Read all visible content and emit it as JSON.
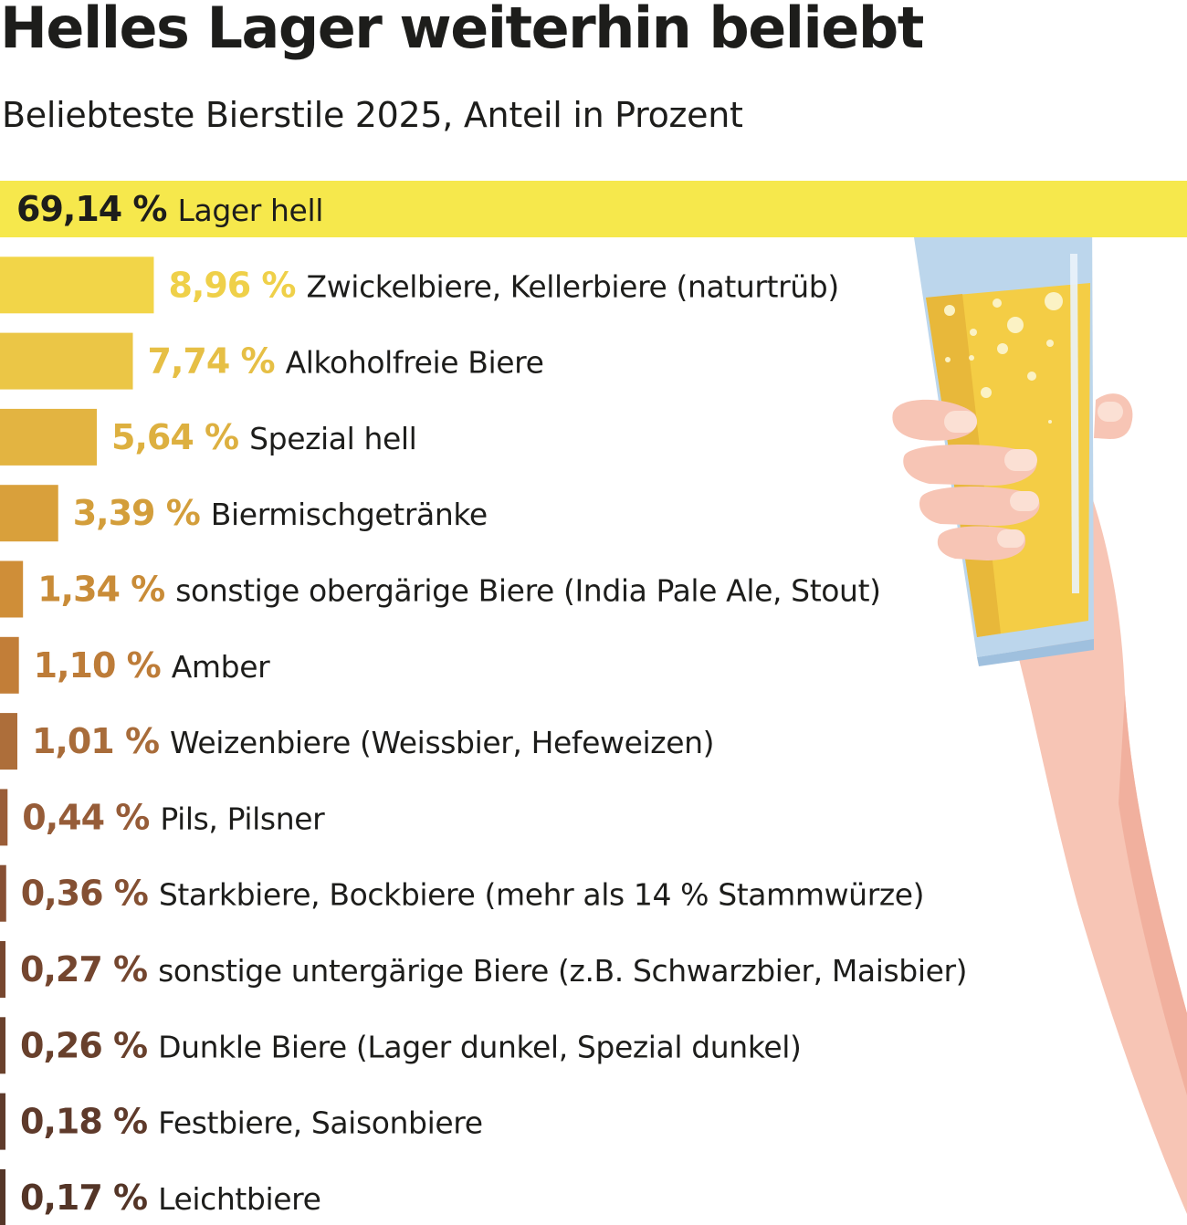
{
  "title": "Helles Lager weiterhin beliebt",
  "subtitle": "Beliebteste Bierstile 2025, Anteil in Prozent",
  "illustration": "hand-holding-beer-glass",
  "chart_data": {
    "type": "bar",
    "orientation": "horizontal",
    "title": "Helles Lager weiterhin beliebt",
    "subtitle": "Beliebteste Bierstile 2025, Anteil in Prozent",
    "unit": "%",
    "categories": [
      "Lager hell",
      "Zwickelbiere, Kellerbiere (naturtrüb)",
      "Alkoholfreie Biere",
      "Spezial hell",
      "Biermischgetränke",
      "sonstige obergärige Biere (India Pale Ale, Stout)",
      "Amber",
      "Weizenbiere (Weissbier, Hefeweizen)",
      "Pils, Pilsner",
      "Starkbiere, Bockbiere (mehr als 14 % Stammwürze)",
      "sonstige untergärige Biere (z.B. Schwarzbier, Maisbier)",
      "Dunkle Biere (Lager dunkel, Spezial dunkel)",
      "Festbiere, Saisonbiere",
      "Leichtbiere"
    ],
    "values": [
      69.14,
      8.96,
      7.74,
      5.64,
      3.39,
      1.34,
      1.1,
      1.01,
      0.44,
      0.36,
      0.27,
      0.26,
      0.18,
      0.17
    ],
    "value_labels": [
      "69,14 %",
      "8,96 %",
      "7,74 %",
      "5,64 %",
      "3,39 %",
      "1,34 %",
      "1,10 %",
      "1,01 %",
      "0,44 %",
      "0,36 %",
      "0,27 %",
      "0,26 %",
      "0,18 %",
      "0,17 %"
    ],
    "colors": [
      "#f6e84c",
      "#f2d548",
      "#ebc646",
      "#e3b441",
      "#d9a03b",
      "#cf8e38",
      "#c27e38",
      "#ad6e3a",
      "#9a5d38",
      "#875034",
      "#77472f",
      "#6a412c",
      "#5f3b2b",
      "#553628"
    ],
    "label_colors": [
      "#1d1d1b",
      "#efd049",
      "#e6bf45",
      "#ddb040",
      "#d39e3b",
      "#c98c38",
      "#bd7c38",
      "#a86c3a",
      "#965c38",
      "#845033",
      "#74462f",
      "#68402c",
      "#5e3a2b",
      "#543527"
    ],
    "grid": false,
    "legend": "none"
  }
}
